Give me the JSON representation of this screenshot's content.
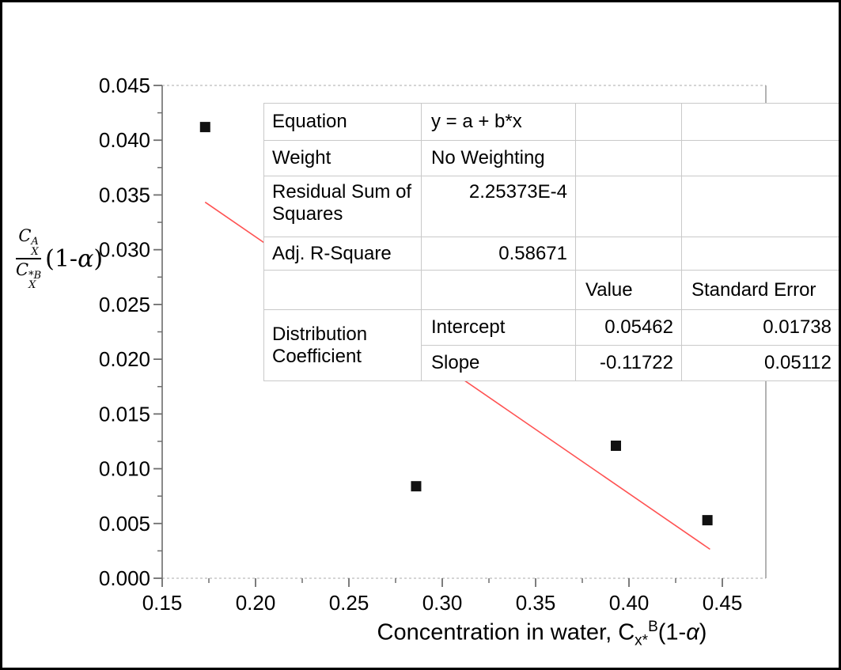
{
  "figure": {
    "background": "#ffffff",
    "border_color": "#000000"
  },
  "chart_data": {
    "type": "scatter",
    "title": "",
    "xlabel": {
      "prefix": "Concentration in water, ",
      "symbol_base": "C",
      "symbol_sub": "x*",
      "symbol_sup": "B",
      "suffix_pre": "(1-",
      "alpha": "α",
      "suffix_post": ")"
    },
    "ylabel": {
      "num_base": "C",
      "num_sup": "A",
      "num_sub": "X",
      "den_base": "C",
      "den_sup": "*B",
      "den_sub": "X",
      "suffix_pre": "(1-",
      "alpha": "α",
      "suffix_post": ")"
    },
    "xlim": [
      0.15,
      0.4733
    ],
    "ylim": [
      0.0,
      0.045
    ],
    "x_ticks": {
      "major": [
        0.15,
        0.2,
        0.25,
        0.3,
        0.35,
        0.4,
        0.45
      ],
      "labels": [
        "0.15",
        "0.20",
        "0.25",
        "0.30",
        "0.35",
        "0.40",
        "0.45"
      ],
      "minor_step": 0.025
    },
    "y_ticks": {
      "major": [
        0.0,
        0.005,
        0.01,
        0.015,
        0.02,
        0.025,
        0.03,
        0.035,
        0.04,
        0.045
      ],
      "labels": [
        "0.000",
        "0.005",
        "0.010",
        "0.015",
        "0.020",
        "0.025",
        "0.030",
        "0.035",
        "0.040",
        "0.045"
      ],
      "minor_step": 0.0025
    },
    "grid": false,
    "legend_position": "none",
    "points": [
      {
        "x": 0.173,
        "y": 0.0412
      },
      {
        "x": 0.286,
        "y": 0.0084
      },
      {
        "x": 0.393,
        "y": 0.0121
      },
      {
        "x": 0.442,
        "y": 0.0053
      }
    ],
    "marker": {
      "shape": "square",
      "color": "#111111",
      "size": 13
    },
    "fit_line": {
      "equation": "y = a + b*x",
      "intercept": 0.05462,
      "slope": -0.11722,
      "x_start": 0.173,
      "x_end": 0.4434,
      "color": "#ff5252"
    }
  },
  "stats_table": {
    "rows": [
      {
        "label": "Equation",
        "value": "y = a + b*x",
        "align": "left"
      },
      {
        "label": "Weight",
        "value": "No Weighting",
        "align": "left"
      },
      {
        "label": "Residual Sum of Squares",
        "value": "2.25373E-4",
        "align": "right"
      },
      {
        "label": "Adj. R-Square",
        "value": "0.58671",
        "align": "right"
      }
    ],
    "header": {
      "col3": "Value",
      "col4": "Standard Error"
    },
    "group_label": "Distribution Coefficient",
    "params": [
      {
        "name": "Intercept",
        "value": "0.05462",
        "std_error": "0.01738"
      },
      {
        "name": "Slope",
        "value": "-0.11722",
        "std_error": "0.05112"
      }
    ]
  }
}
